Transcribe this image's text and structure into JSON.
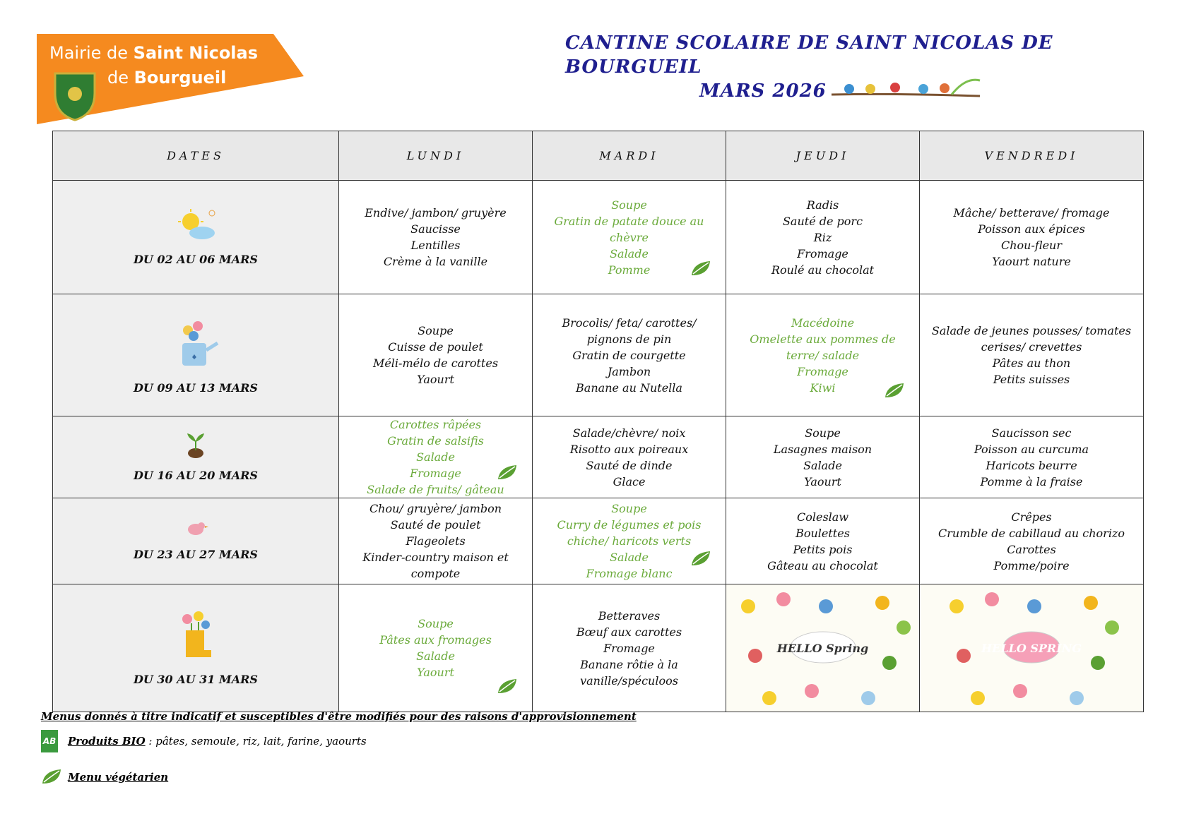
{
  "header": {
    "logo_prefix": "Mairie de",
    "logo_name": "Saint Nicolas",
    "logo_prefix2": "de",
    "logo_name2": "Bourgueil",
    "title": "CANTINE SCOLAIRE DE SAINT NICOLAS DE BOURGUEIL",
    "subtitle": "MARS 2026"
  },
  "table": {
    "headers": [
      "DATES",
      "LUNDI",
      "MARDI",
      "JEUDI",
      "VENDREDI"
    ],
    "rows": [
      {
        "dates": "DU 02 AU 06 MARS",
        "icon": "sun",
        "cells": [
          {
            "items": [
              "Endive/ jambon/ gruyère",
              "Saucisse",
              "Lentilles",
              "Crème à la vanille"
            ],
            "vegetarian": false
          },
          {
            "items": [
              "Soupe",
              "Gratin de patate douce au chèvre",
              "Salade",
              "Pomme"
            ],
            "vegetarian": true
          },
          {
            "items": [
              "Radis",
              "Sauté de porc",
              "Riz",
              "Fromage",
              "Roulé au chocolat"
            ],
            "vegetarian": false
          },
          {
            "items": [
              "Mâche/ betterave/ fromage",
              "Poisson aux épices",
              "Chou-fleur",
              "Yaourt nature"
            ],
            "vegetarian": false
          }
        ]
      },
      {
        "dates": "DU 09 AU 13 MARS",
        "icon": "can",
        "cells": [
          {
            "items": [
              "Soupe",
              "Cuisse de poulet",
              "Méli-mélo de carottes",
              "Yaourt"
            ],
            "vegetarian": false
          },
          {
            "items": [
              "Brocolis/ feta/ carottes/ pignons de pin",
              "Gratin de courgette",
              "Jambon",
              "Banane au Nutella"
            ],
            "vegetarian": false
          },
          {
            "items": [
              "Macédoine",
              "Omelette aux pommes de terre/ salade",
              "Fromage",
              "Kiwi"
            ],
            "vegetarian": true
          },
          {
            "items": [
              "Salade de jeunes pousses/ tomates cerises/ crevettes",
              "Pâtes au thon",
              "Petits suisses"
            ],
            "vegetarian": false
          }
        ]
      },
      {
        "dates": "DU 16 AU 20 MARS",
        "icon": "sprout",
        "cells": [
          {
            "items": [
              "Carottes râpées",
              "Gratin de salsifis",
              "Salade",
              "Fromage",
              "Salade de fruits/ gâteau"
            ],
            "vegetarian": true
          },
          {
            "items": [
              "Salade/chèvre/ noix",
              "Risotto aux poireaux",
              "Sauté de dinde",
              "Glace"
            ],
            "vegetarian": false
          },
          {
            "items": [
              "Soupe",
              "Lasagnes maison",
              "Salade",
              "Yaourt"
            ],
            "vegetarian": false
          },
          {
            "items": [
              "Saucisson sec",
              "Poisson au curcuma",
              "Haricots beurre",
              "Pomme à la fraise"
            ],
            "vegetarian": false
          }
        ]
      },
      {
        "dates": "DU 23 AU 27 MARS",
        "icon": "bird",
        "cells": [
          {
            "items": [
              "Chou/ gruyère/ jambon",
              "Sauté de poulet",
              "Flageolets",
              "Kinder-country maison et compote"
            ],
            "vegetarian": false
          },
          {
            "items": [
              "Soupe",
              "Curry de légumes et pois chiche/ haricots verts",
              "Salade",
              "Fromage blanc"
            ],
            "vegetarian": true
          },
          {
            "items": [
              "Coleslaw",
              "Boulettes",
              "Petits pois",
              "Gâteau au chocolat"
            ],
            "vegetarian": false
          },
          {
            "items": [
              "Crêpes",
              "Crumble de cabillaud au chorizo",
              "Carottes",
              "Pomme/poire"
            ],
            "vegetarian": false
          }
        ]
      },
      {
        "dates": "DU 30 AU 31 MARS",
        "icon": "boot",
        "cells": [
          {
            "items": [
              "Soupe",
              "Pâtes aux fromages",
              "Salade",
              "Yaourt"
            ],
            "vegetarian": true
          },
          {
            "items": [
              "Betteraves",
              "Bœuf aux carottes",
              "Fromage",
              "Banane rôtie à la vanille/spéculoos"
            ],
            "vegetarian": false
          },
          {
            "illustration": "HELLO Spring"
          },
          {
            "illustration": "HELLO SPRING"
          }
        ]
      }
    ]
  },
  "footer": {
    "note": "Menus donnés à titre indicatif et susceptibles d'être modifiés pour des raisons d'approvisionnement",
    "bio_label": "Produits BIO",
    "bio_text": ": pâtes, semoule, riz, lait, farine, yaourts",
    "veg_label": "Menu végétarien"
  }
}
